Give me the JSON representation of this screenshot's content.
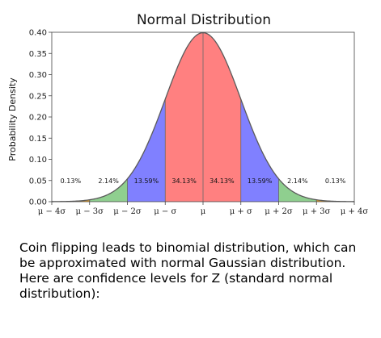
{
  "chart_data": {
    "type": "area",
    "title": "Normal Distribution",
    "xlabel": "",
    "ylabel": "Probability Density",
    "ylim": [
      0,
      0.4
    ],
    "xlim": [
      -4,
      4
    ],
    "yticks": [
      "0.00",
      "0.05",
      "0.10",
      "0.15",
      "0.20",
      "0.25",
      "0.30",
      "0.35",
      "0.40"
    ],
    "xticks": [
      "μ − 4σ",
      "μ − 3σ",
      "μ − 2σ",
      "μ − σ",
      "μ",
      "μ + σ",
      "μ + 2σ",
      "μ + 3σ",
      "μ + 4σ"
    ],
    "distribution": {
      "name": "standard normal",
      "mean": 0,
      "sd": 1
    },
    "regions": [
      {
        "from": -4,
        "to": -3,
        "percent": "0.13%",
        "color": "#f5a623"
      },
      {
        "from": -3,
        "to": -2,
        "percent": "2.14%",
        "color": "#8fcf8f"
      },
      {
        "from": -2,
        "to": -1,
        "percent": "13.59%",
        "color": "#8080ff"
      },
      {
        "from": -1,
        "to": 0,
        "percent": "34.13%",
        "color": "#ff8080"
      },
      {
        "from": 0,
        "to": 1,
        "percent": "34.13%",
        "color": "#ff8080"
      },
      {
        "from": 1,
        "to": 2,
        "percent": "13.59%",
        "color": "#8080ff"
      },
      {
        "from": 2,
        "to": 3,
        "percent": "2.14%",
        "color": "#8fcf8f"
      },
      {
        "from": 3,
        "to": 4,
        "percent": "0.13%",
        "color": "#f5a623"
      }
    ],
    "grid": false,
    "line_color": "#5a5a5a"
  },
  "caption": "Coin flipping leads to binomial distribution, which can be approximated with normal Gaussian distribution. Here are confidence levels for Z (standard normal distribution):"
}
